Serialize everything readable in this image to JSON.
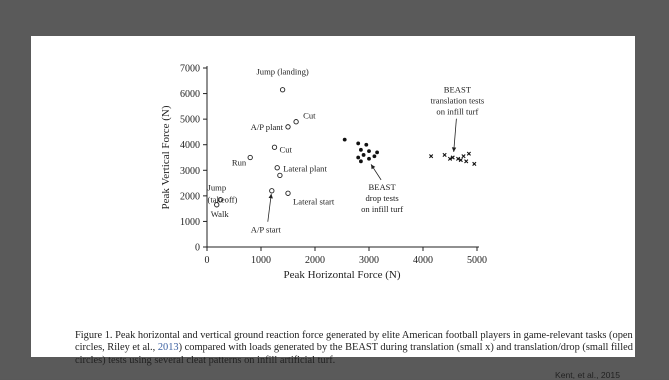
{
  "chart_data": {
    "type": "scatter",
    "xlabel": "Peak Horizontal Force (N)",
    "ylabel": "Peak Vertical Force (N)",
    "xlim": [
      0,
      5000
    ],
    "ylim": [
      0,
      7000
    ],
    "x_ticks": [
      0,
      1000,
      2000,
      3000,
      4000,
      5000
    ],
    "y_ticks": [
      0,
      1000,
      2000,
      3000,
      4000,
      5000,
      6000,
      7000
    ],
    "grid": false,
    "series": [
      {
        "marker": "open-circle",
        "points": [
          {
            "x": 1400,
            "y": 6150,
            "label": "Jump (landing)"
          },
          {
            "x": 1650,
            "y": 4900,
            "label": "Cut"
          },
          {
            "x": 1500,
            "y": 4700,
            "label": "A/P plant"
          },
          {
            "x": 1250,
            "y": 3900,
            "label": "Cut"
          },
          {
            "x": 800,
            "y": 3500,
            "label": "Run"
          },
          {
            "x": 1300,
            "y": 3100,
            "label": "Lateral plant"
          },
          {
            "x": 1350,
            "y": 2800,
            "label": ""
          },
          {
            "x": 250,
            "y": 1850,
            "label": "Jump (takeoff)"
          },
          {
            "x": 180,
            "y": 1650,
            "label": "Walk"
          },
          {
            "x": 1200,
            "y": 2200,
            "label": "A/P start"
          },
          {
            "x": 1500,
            "y": 2100,
            "label": "Lateral start"
          }
        ]
      },
      {
        "marker": "filled-circle",
        "points": [
          {
            "x": 2550,
            "y": 4200
          },
          {
            "x": 2800,
            "y": 4050
          },
          {
            "x": 2950,
            "y": 4000
          },
          {
            "x": 2850,
            "y": 3800
          },
          {
            "x": 3000,
            "y": 3750
          },
          {
            "x": 3150,
            "y": 3700
          },
          {
            "x": 2900,
            "y": 3600
          },
          {
            "x": 3100,
            "y": 3550
          },
          {
            "x": 2800,
            "y": 3500
          },
          {
            "x": 3000,
            "y": 3450
          },
          {
            "x": 2850,
            "y": 3350
          }
        ]
      },
      {
        "marker": "small-x",
        "points": [
          {
            "x": 4150,
            "y": 3550
          },
          {
            "x": 4400,
            "y": 3600
          },
          {
            "x": 4550,
            "y": 3500
          },
          {
            "x": 4650,
            "y": 3450
          },
          {
            "x": 4700,
            "y": 3400
          },
          {
            "x": 4750,
            "y": 3550
          },
          {
            "x": 4800,
            "y": 3350
          },
          {
            "x": 4850,
            "y": 3650
          },
          {
            "x": 4950,
            "y": 3250
          },
          {
            "x": 4500,
            "y": 3450
          }
        ]
      }
    ],
    "annotations": [
      {
        "text": "Jump (landing)",
        "x": 1400,
        "y": 6150
      },
      {
        "text": "Cut",
        "x": 1650,
        "y": 4900
      },
      {
        "text": "A/P plant",
        "x": 1500,
        "y": 4700
      },
      {
        "text": "Cut",
        "x": 1250,
        "y": 3900
      },
      {
        "text": "Run",
        "x": 800,
        "y": 3500
      },
      {
        "text": "Lateral plant",
        "x": 1300,
        "y": 3100
      },
      {
        "text": "Jump",
        "x": 250,
        "y": 1850
      },
      {
        "text": "(takeoff)",
        "x": 250,
        "y": 1850
      },
      {
        "text": "Walk",
        "x": 180,
        "y": 1650
      },
      {
        "text": "Lateral start",
        "x": 1500,
        "y": 2100
      },
      {
        "text": "A/P start",
        "x": 1200,
        "y": 2200
      },
      {
        "text": "BEAST",
        "x": 3150,
        "y": 3250
      },
      {
        "text": "drop tests",
        "x": 3150,
        "y": 3250
      },
      {
        "text": "on infill turf",
        "x": 3150,
        "y": 3250
      },
      {
        "text": "BEAST",
        "x": 4600,
        "y": 4000
      },
      {
        "text": "translation tests",
        "x": 4600,
        "y": 4000
      },
      {
        "text": "on infill turf",
        "x": 4600,
        "y": 4000
      }
    ]
  },
  "caption": {
    "main": "Figure 1. Peak horizontal and vertical ground reaction force generated by elite American football players in game-relevant tasks (open circles, Riley et al., ",
    "cite_year": "2013",
    "rest": ") compared with loads generated by the BEAST during translation (small x) and translation/drop (small filled circles) tests using several cleat patterns on infill artificial turf."
  },
  "source": "Kent, et al., 2015"
}
